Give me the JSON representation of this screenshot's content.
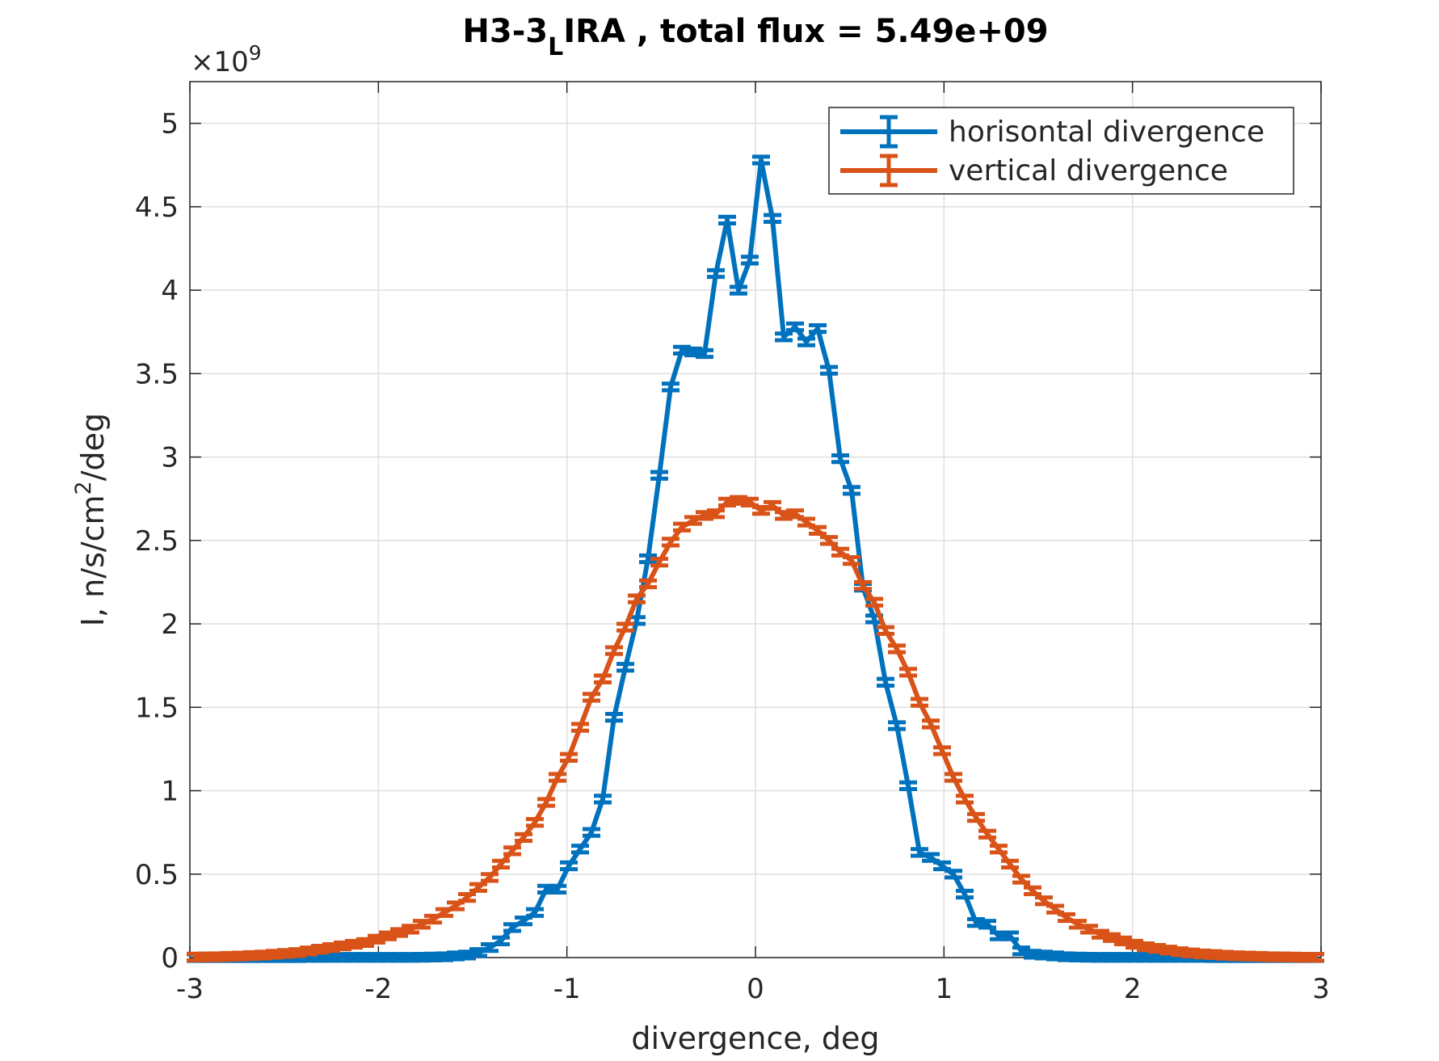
{
  "chart_data": {
    "type": "errorbar-line",
    "title_parts": [
      "H3-3",
      "L",
      "IRA , total flux =  5.49e+09"
    ],
    "xlabel": "divergence, deg",
    "ylabel_parts": [
      "I, n/s/cm",
      "2",
      "/deg"
    ],
    "y_exponent_parts": [
      "×10",
      "9"
    ],
    "xlim": [
      -3,
      3
    ],
    "ylim": [
      0,
      5.25
    ],
    "xticks": [
      -3,
      -2,
      -1,
      0,
      1,
      2,
      3
    ],
    "yticks": [
      0,
      0.5,
      1,
      1.5,
      2,
      2.5,
      3,
      3.5,
      4,
      4.5,
      5
    ],
    "grid": true,
    "legend": "top-right",
    "x": [
      -2.97,
      -2.91,
      -2.85,
      -2.79,
      -2.73,
      -2.67,
      -2.61,
      -2.55,
      -2.49,
      -2.43,
      -2.37,
      -2.31,
      -2.25,
      -2.19,
      -2.13,
      -2.07,
      -2.01,
      -1.95,
      -1.89,
      -1.83,
      -1.77,
      -1.71,
      -1.65,
      -1.59,
      -1.53,
      -1.47,
      -1.41,
      -1.35,
      -1.29,
      -1.23,
      -1.17,
      -1.11,
      -1.05,
      -0.99,
      -0.93,
      -0.87,
      -0.81,
      -0.75,
      -0.69,
      -0.63,
      -0.57,
      -0.51,
      -0.45,
      -0.39,
      -0.33,
      -0.27,
      -0.21,
      -0.15,
      -0.09,
      -0.03,
      0.03,
      0.09,
      0.15,
      0.21,
      0.27,
      0.33,
      0.39,
      0.45,
      0.51,
      0.57,
      0.63,
      0.69,
      0.75,
      0.81,
      0.87,
      0.93,
      0.99,
      1.05,
      1.11,
      1.17,
      1.23,
      1.29,
      1.35,
      1.41,
      1.47,
      1.53,
      1.59,
      1.65,
      1.71,
      1.77,
      1.83,
      1.89,
      1.95,
      2.01,
      2.07,
      2.13,
      2.19,
      2.25,
      2.31,
      2.37,
      2.43,
      2.49,
      2.55,
      2.61,
      2.67,
      2.73,
      2.79,
      2.85,
      2.91,
      2.97
    ],
    "series": [
      {
        "name": "horisontal divergence",
        "color": "#0072bd",
        "error": 0.02,
        "values": [
          0,
          0,
          0,
          0,
          0,
          0,
          0,
          0,
          0,
          0,
          0.001,
          0.001,
          0.001,
          0.001,
          0.001,
          0.001,
          0.001,
          0.001,
          0.001,
          0.001,
          0.002,
          0.003,
          0.005,
          0.01,
          0.015,
          0.03,
          0.06,
          0.1,
          0.18,
          0.22,
          0.27,
          0.41,
          0.41,
          0.55,
          0.65,
          0.75,
          0.95,
          1.44,
          1.74,
          2.02,
          2.39,
          2.89,
          3.42,
          3.64,
          3.63,
          3.62,
          4.1,
          4.42,
          4.0,
          4.18,
          4.78,
          4.43,
          3.72,
          3.78,
          3.69,
          3.77,
          3.52,
          2.99,
          2.8,
          2.22,
          2.03,
          1.65,
          1.39,
          1.03,
          0.63,
          0.6,
          0.55,
          0.5,
          0.38,
          0.21,
          0.2,
          0.13,
          0.13,
          0.04,
          0.02,
          0.015,
          0.01,
          0.005,
          0.003,
          0.002,
          0.001,
          0.001,
          0.001,
          0.001,
          0.001,
          0.001,
          0.001,
          0.001,
          0.001,
          0.001,
          0,
          0,
          0,
          0,
          0,
          0,
          0,
          0,
          0,
          0
        ]
      },
      {
        "name": "vertical divergence",
        "color": "#d95319",
        "error": 0.02,
        "values": [
          0.003,
          0.004,
          0.005,
          0.007,
          0.009,
          0.012,
          0.015,
          0.02,
          0.025,
          0.03,
          0.04,
          0.05,
          0.06,
          0.07,
          0.08,
          0.09,
          0.11,
          0.13,
          0.15,
          0.17,
          0.2,
          0.23,
          0.27,
          0.31,
          0.36,
          0.42,
          0.48,
          0.56,
          0.64,
          0.72,
          0.81,
          0.93,
          1.08,
          1.2,
          1.38,
          1.56,
          1.67,
          1.84,
          1.98,
          2.15,
          2.24,
          2.37,
          2.49,
          2.58,
          2.62,
          2.65,
          2.66,
          2.73,
          2.74,
          2.73,
          2.68,
          2.71,
          2.65,
          2.66,
          2.61,
          2.56,
          2.5,
          2.43,
          2.38,
          2.23,
          2.13,
          1.96,
          1.85,
          1.71,
          1.53,
          1.4,
          1.24,
          1.08,
          0.95,
          0.84,
          0.74,
          0.65,
          0.56,
          0.47,
          0.4,
          0.34,
          0.29,
          0.24,
          0.2,
          0.17,
          0.14,
          0.12,
          0.1,
          0.08,
          0.065,
          0.055,
          0.045,
          0.035,
          0.028,
          0.022,
          0.018,
          0.014,
          0.011,
          0.009,
          0.007,
          0.005,
          0.004,
          0.003,
          0.002,
          0.002
        ]
      }
    ]
  }
}
